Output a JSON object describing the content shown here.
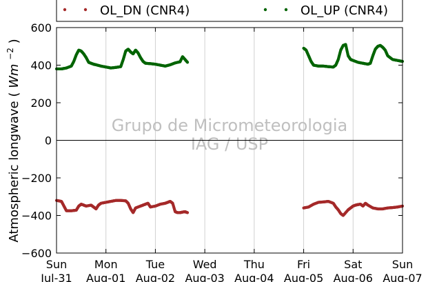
{
  "chart_data": {
    "type": "scatter",
    "ylabel": "Atmospheric longwave",
    "ylabel_unit_base": "Wm",
    "ylabel_unit_exp": "−2",
    "ylim": [
      -600,
      600
    ],
    "yticks": [
      {
        "value": 600,
        "label": "600"
      },
      {
        "value": 400,
        "label": "400"
      },
      {
        "value": 200,
        "label": "200"
      },
      {
        "value": 0,
        "label": "0"
      },
      {
        "value": -200,
        "label": "−200"
      },
      {
        "value": -400,
        "label": "−400"
      },
      {
        "value": -600,
        "label": "−600"
      }
    ],
    "xlim_days": [
      0,
      7
    ],
    "xticks": [
      {
        "day": 0,
        "line1": "Sun",
        "line2": "Jul-31"
      },
      {
        "day": 1,
        "line1": "Mon",
        "line2": "Aug-01"
      },
      {
        "day": 2,
        "line1": "Tue",
        "line2": "Aug-02"
      },
      {
        "day": 3,
        "line1": "Wed",
        "line2": "Aug-03"
      },
      {
        "day": 4,
        "line1": "Thu",
        "line2": "Aug-04"
      },
      {
        "day": 5,
        "line1": "Fri",
        "line2": "Aug-05"
      },
      {
        "day": 6,
        "line1": "Sat",
        "line2": "Aug-06"
      },
      {
        "day": 7,
        "line1": "Sun",
        "line2": "Aug-07"
      }
    ],
    "grid": "vertical",
    "zero_line": true,
    "legend_position": "top",
    "watermark": [
      "Grupo de Micrometeorologia",
      "IAG / USP"
    ],
    "series": [
      {
        "name": "OL_DN (CNR4)",
        "color": "#a52a2a",
        "segments": [
          {
            "x": [
              0.0,
              0.1,
              0.15,
              0.2,
              0.3,
              0.4,
              0.45,
              0.5,
              0.55,
              0.6,
              0.7,
              0.75,
              0.8,
              0.85,
              0.9,
              1.0,
              1.1,
              1.2,
              1.3,
              1.4,
              1.45,
              1.5,
              1.55,
              1.6,
              1.7,
              1.75,
              1.8,
              1.85,
              1.9,
              2.0,
              2.1,
              2.2,
              2.25,
              2.3,
              2.35,
              2.4,
              2.45,
              2.5,
              2.55,
              2.6,
              2.65
            ],
            "y": [
              -320,
              -325,
              -350,
              -375,
              -375,
              -372,
              -350,
              -340,
              -345,
              -350,
              -345,
              -355,
              -365,
              -345,
              -335,
              -330,
              -325,
              -320,
              -320,
              -322,
              -335,
              -365,
              -385,
              -360,
              -350,
              -345,
              -340,
              -335,
              -355,
              -350,
              -340,
              -335,
              -330,
              -325,
              -335,
              -380,
              -385,
              -385,
              -382,
              -380,
              -385
            ]
          },
          {
            "x": [
              5.0,
              5.1,
              5.2,
              5.3,
              5.4,
              5.5,
              5.6,
              5.65,
              5.7,
              5.75,
              5.8,
              5.9,
              5.95,
              6.0,
              6.05,
              6.1,
              6.15,
              6.2,
              6.25,
              6.3,
              6.4,
              6.5,
              6.6,
              6.7,
              6.8,
              6.9,
              7.0
            ],
            "y": [
              -360,
              -355,
              -340,
              -330,
              -328,
              -325,
              -335,
              -355,
              -370,
              -390,
              -400,
              -370,
              -360,
              -350,
              -345,
              -342,
              -340,
              -350,
              -335,
              -345,
              -360,
              -365,
              -365,
              -360,
              -358,
              -355,
              -350
            ]
          }
        ]
      },
      {
        "name": "OL_UP (CNR4)",
        "color": "#006400",
        "segments": [
          {
            "x": [
              0.0,
              0.1,
              0.2,
              0.3,
              0.35,
              0.4,
              0.45,
              0.5,
              0.55,
              0.6,
              0.65,
              0.7,
              0.75,
              0.8,
              0.9,
              1.0,
              1.1,
              1.2,
              1.3,
              1.35,
              1.4,
              1.45,
              1.5,
              1.55,
              1.6,
              1.65,
              1.7,
              1.75,
              1.8,
              1.9,
              2.0,
              2.1,
              2.2,
              2.3,
              2.4,
              2.5,
              2.55,
              2.6,
              2.65
            ],
            "y": [
              380,
              380,
              385,
              395,
              420,
              455,
              480,
              475,
              460,
              440,
              415,
              410,
              405,
              402,
              395,
              390,
              385,
              388,
              392,
              430,
              475,
              485,
              470,
              460,
              480,
              465,
              440,
              420,
              410,
              408,
              405,
              400,
              395,
              402,
              412,
              418,
              445,
              430,
              415
            ]
          },
          {
            "x": [
              5.0,
              5.05,
              5.1,
              5.15,
              5.2,
              5.3,
              5.4,
              5.5,
              5.6,
              5.65,
              5.7,
              5.75,
              5.8,
              5.85,
              5.9,
              5.95,
              6.0,
              6.1,
              6.2,
              6.3,
              6.35,
              6.4,
              6.45,
              6.5,
              6.55,
              6.6,
              6.65,
              6.7,
              6.8,
              6.9,
              7.0
            ],
            "y": [
              490,
              480,
              450,
              420,
              400,
              395,
              395,
              392,
              390,
              400,
              430,
              480,
              505,
              510,
              450,
              430,
              425,
              415,
              410,
              405,
              410,
              450,
              485,
              500,
              505,
              495,
              480,
              450,
              430,
              425,
              420
            ]
          }
        ]
      }
    ]
  }
}
